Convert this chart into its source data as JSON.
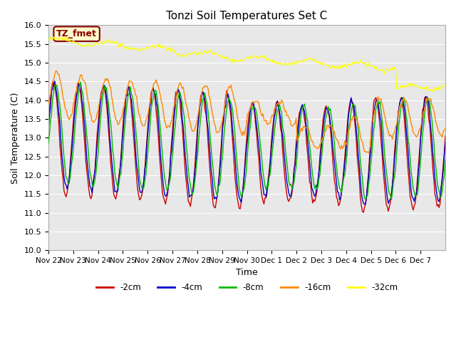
{
  "title": "Tonzi Soil Temperatures Set C",
  "xlabel": "Time",
  "ylabel": "Soil Temperature (C)",
  "ylim": [
    10.0,
    16.0
  ],
  "yticks": [
    10.0,
    10.5,
    11.0,
    11.5,
    12.0,
    12.5,
    13.0,
    13.5,
    14.0,
    14.5,
    15.0,
    15.5,
    16.0
  ],
  "xtick_labels": [
    "Nov 22",
    "Nov 23",
    "Nov 24",
    "Nov 25",
    "Nov 26",
    "Nov 27",
    "Nov 28",
    "Nov 29",
    "Nov 30",
    "Dec 1",
    "Dec 2",
    "Dec 3",
    "Dec 4",
    "Dec 5",
    "Dec 6",
    "Dec 7"
  ],
  "colors": {
    "2cm": "#cc0000",
    "4cm": "#0000cc",
    "8cm": "#00bb00",
    "16cm": "#ff8800",
    "32cm": "#ffff00"
  },
  "legend_labels": [
    "-2cm",
    "-4cm",
    "-8cm",
    "-16cm",
    "-32cm"
  ],
  "bg_color": "#e8e8e8",
  "annotation_text": "TZ_fmet",
  "annotation_bg": "#ffffcc",
  "annotation_fg": "#880000"
}
